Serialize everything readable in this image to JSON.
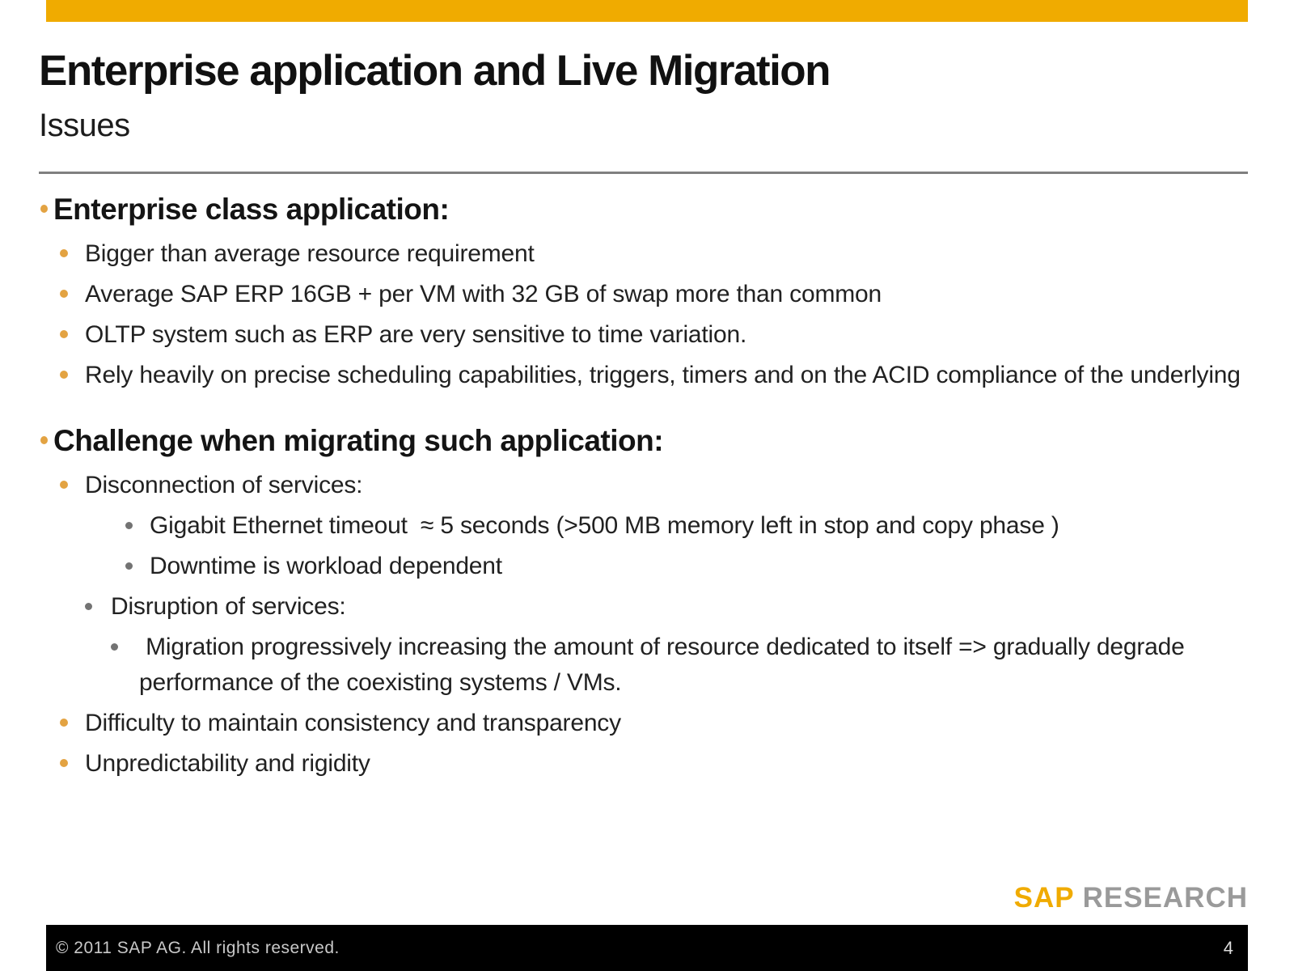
{
  "header": {
    "title": "Enterprise application and Live Migration",
    "subtitle": "Issues"
  },
  "colors": {
    "gold_bar": "#F0AB00",
    "bullet_orange": "#E3A342",
    "bullet_gray": "#737373",
    "rule_gray": "#7f7f7f",
    "logo_sap": "#F0AB00",
    "logo_research": "#9a9a9a",
    "footer_bg": "#000000"
  },
  "sections": [
    {
      "heading": "Enterprise class application:",
      "items": [
        {
          "indent": 1,
          "bullet": "orange",
          "text": "Bigger than average resource requirement"
        },
        {
          "indent": 1,
          "bullet": "orange",
          "text": "Average SAP ERP 16GB + per VM with 32 GB of swap more than common"
        },
        {
          "indent": 1,
          "bullet": "orange",
          "text": "OLTP system such as ERP are very sensitive to time variation."
        },
        {
          "indent": 1,
          "bullet": "orange",
          "text": "Rely heavily on precise scheduling capabilities, triggers, timers and on the ACID compliance of the underlying"
        }
      ]
    },
    {
      "heading": "Challenge when migrating such application:",
      "items": [
        {
          "indent": 1,
          "bullet": "orange",
          "text": "Disconnection of services:"
        },
        {
          "indent": 4,
          "bullet": "gray",
          "text": "Gigabit Ethernet timeout  ≈ 5 seconds (>500 MB memory left in stop and copy phase )"
        },
        {
          "indent": 4,
          "bullet": "gray",
          "text": "Downtime is workload dependent"
        },
        {
          "indent": 2,
          "bullet": "gray",
          "text": "Disruption of services:"
        },
        {
          "indent": 3,
          "bullet": "gray",
          "text": " Migration progressively increasing the amount of resource dedicated to itself => gradually degrade performance of the coexisting systems / VMs."
        },
        {
          "indent": 1,
          "bullet": "orange",
          "text": "Difficulty to maintain consistency and transparency"
        },
        {
          "indent": 1,
          "bullet": "orange",
          "text": "Unpredictability and rigidity"
        }
      ]
    }
  ],
  "logo": {
    "sap": "SAP",
    "research": "RESEARCH"
  },
  "footer": {
    "copyright": "© 2011 SAP AG. All rights reserved.",
    "page_number": "4"
  }
}
